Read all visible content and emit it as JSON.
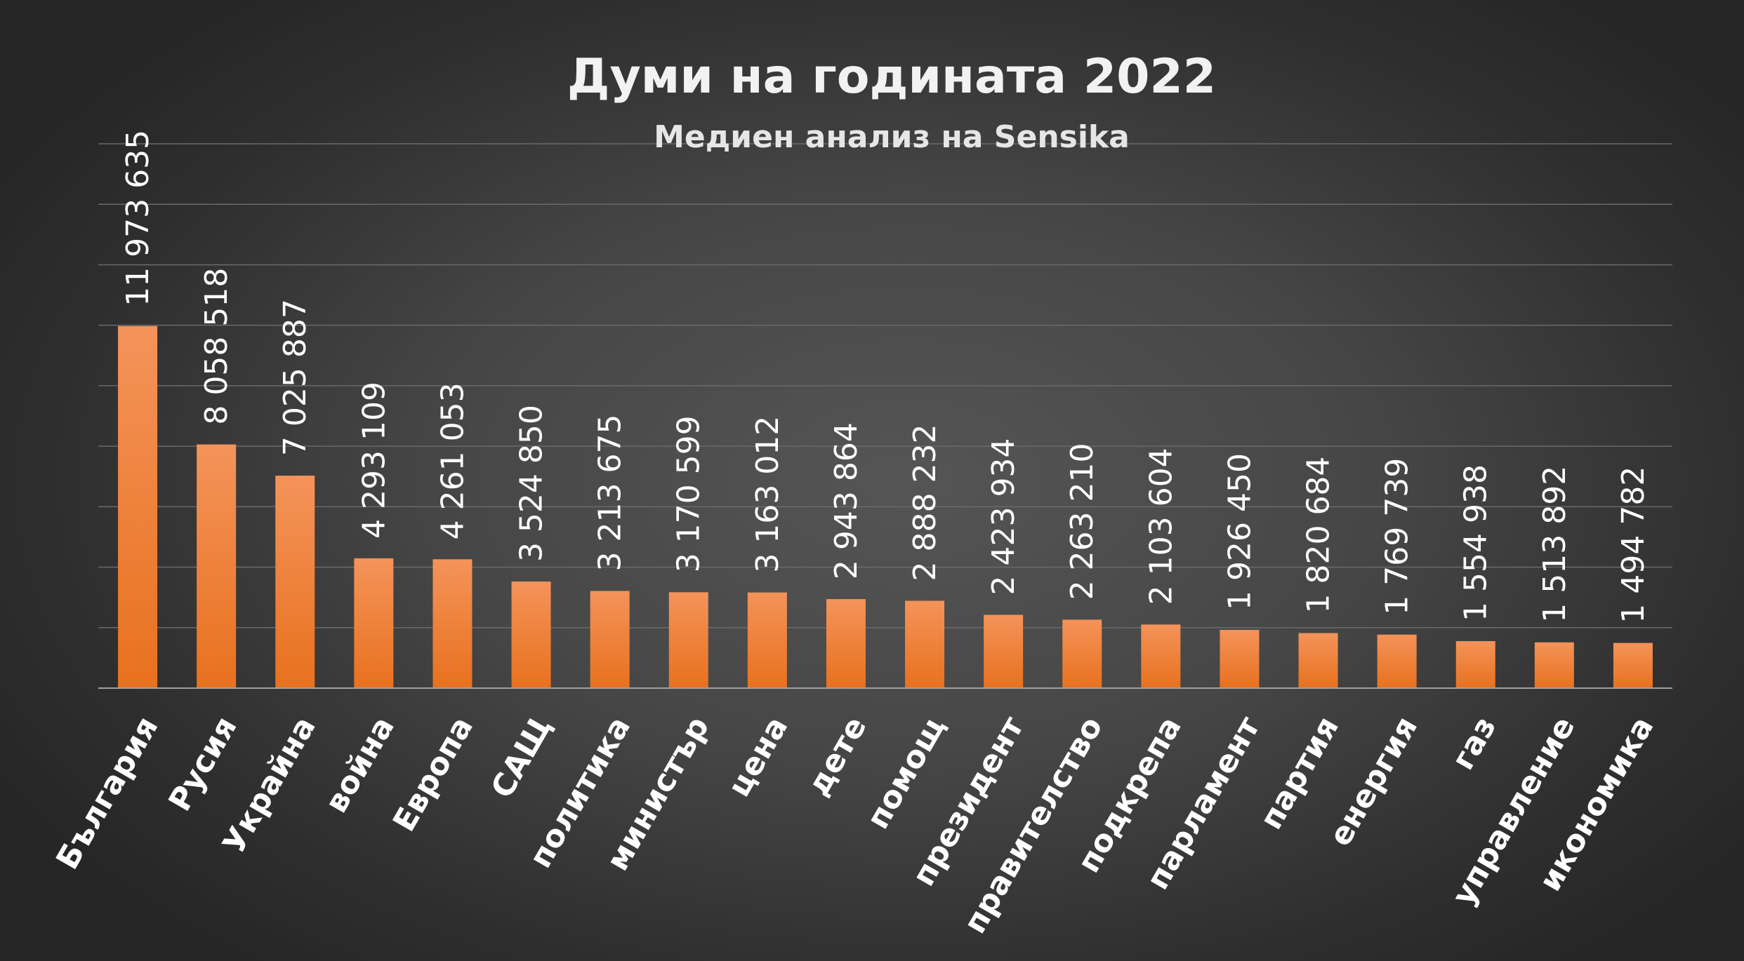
{
  "chart_data": {
    "type": "bar",
    "title": "Думи на годината 2022",
    "subtitle": "Медиен анализ на Sensika",
    "xlabel": "",
    "ylabel": "",
    "ylim": [
      0,
      18000000
    ],
    "grid": true,
    "legend": "none",
    "bar_color_top": "#f4935a",
    "bar_color_bottom": "#e8711e",
    "categories": [
      "България",
      "Русия",
      "Украйна",
      "война",
      "Европа",
      "САЩ",
      "политика",
      "министър",
      "цена",
      "дете",
      "помощ",
      "президент",
      "правителство",
      "подкрепа",
      "парламент",
      "партия",
      "енергия",
      "газ",
      "управление",
      "икономика"
    ],
    "values": [
      11973635,
      8058518,
      7025887,
      4293109,
      4261053,
      3524850,
      3213675,
      3170599,
      3163012,
      2943864,
      2888232,
      2423934,
      2263210,
      2103604,
      1926450,
      1820684,
      1769739,
      1554938,
      1513892,
      1494782
    ],
    "value_labels": [
      "11 973 635",
      "8 058 518",
      "7 025 887",
      "4 293 109",
      "4 261 053",
      "3 524 850",
      "3 213 675",
      "3 170 599",
      "3 163 012",
      "2 943 864",
      "2 888 232",
      "2 423 934",
      "2 263 210",
      "2 103 604",
      "1 926 450",
      "1 820 684",
      "1 769 739",
      "1 554 938",
      "1 513 892",
      "1 494 782"
    ]
  }
}
